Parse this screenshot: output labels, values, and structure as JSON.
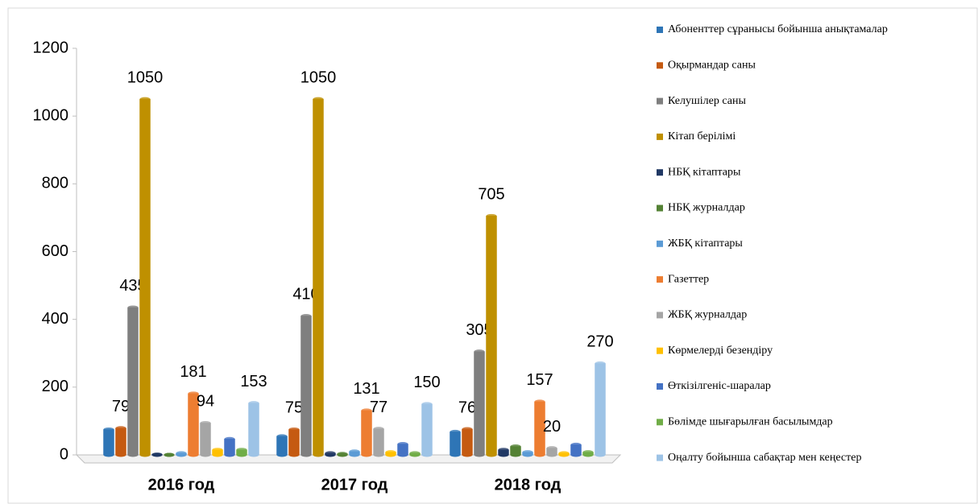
{
  "chart_data": {
    "type": "bar",
    "categories": [
      "2016 год",
      "2017 год",
      "2018 год"
    ],
    "ylim": [
      0,
      1200
    ],
    "yticks": [
      0,
      200,
      400,
      600,
      800,
      1000,
      1200
    ],
    "series": [
      {
        "name": "Абоненттер сұранысы бойынша анықтамалар",
        "color": "#2e75b6",
        "values": [
          75,
          55,
          68
        ],
        "value_labels": [
          null,
          null,
          null
        ]
      },
      {
        "name": "Оқырмандар саны",
        "color": "#c55a11",
        "values": [
          79,
          75,
          76
        ],
        "value_labels": [
          "79",
          "75",
          "76"
        ]
      },
      {
        "name": "Келушілер саны",
        "color": "#7f7f7f",
        "values": [
          435,
          410,
          305
        ],
        "value_labels": [
          "435",
          "410",
          "305"
        ]
      },
      {
        "name": "Кітап берілімі",
        "color": "#bf9000",
        "values": [
          1050,
          1050,
          705
        ],
        "value_labels": [
          "1050",
          "1050",
          "705"
        ]
      },
      {
        "name": "НБҚ кітаптары",
        "color": "#203864",
        "values": [
          1,
          5,
          15
        ],
        "value_labels": [
          null,
          null,
          null
        ]
      },
      {
        "name": "НБҚ журналдар",
        "color": "#548235",
        "values": [
          0,
          3,
          25
        ],
        "value_labels": [
          null,
          null,
          null
        ]
      },
      {
        "name": "ЖБҚ кітаптары",
        "color": "#5b9bd5",
        "values": [
          5,
          10,
          8
        ],
        "value_labels": [
          null,
          null,
          null
        ]
      },
      {
        "name": "Газеттер",
        "color": "#ed7d31",
        "values": [
          181,
          131,
          157
        ],
        "value_labels": [
          "181",
          "131",
          "157"
        ]
      },
      {
        "name": "ЖБҚ журналдар",
        "color": "#a5a5a5",
        "values": [
          94,
          77,
          20
        ],
        "value_labels": [
          "94",
          "77",
          "20"
        ]
      },
      {
        "name": "Көрмелерді безендіру",
        "color": "#ffc000",
        "values": [
          15,
          8,
          5
        ],
        "value_labels": [
          null,
          null,
          null
        ]
      },
      {
        "name": "Өткізілгеніс-шаралар",
        "color": "#4472c4",
        "values": [
          47,
          32,
          30
        ],
        "value_labels": [
          null,
          null,
          null
        ]
      },
      {
        "name": "Бөлімде шығарылған басылымдар",
        "color": "#70ad47",
        "values": [
          15,
          5,
          8
        ],
        "value_labels": [
          null,
          null,
          null
        ]
      },
      {
        "name": "Оңалту бойынша сабақтар мен кеңестер",
        "color": "#9dc3e6",
        "values": [
          153,
          150,
          270
        ],
        "value_labels": [
          "153",
          "150",
          "270"
        ]
      }
    ]
  }
}
